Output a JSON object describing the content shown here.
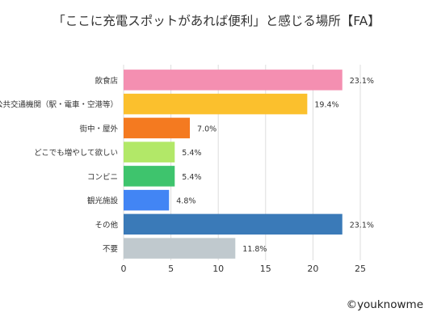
{
  "chart_data": {
    "type": "bar",
    "orientation": "horizontal",
    "title": "「ここに充電スポットがあれば便利」と感じる場所【FA】",
    "categories": [
      "飲食店",
      "公共交通機関（駅・電車・空港等）",
      "街中・屋外",
      "どこでも増やして欲しい",
      "コンビニ",
      "観光施設",
      "その他",
      "不要"
    ],
    "values": [
      23.1,
      19.4,
      7.0,
      5.4,
      5.4,
      4.8,
      23.1,
      11.8
    ],
    "value_labels": [
      "23.1%",
      "19.4%",
      "7.0%",
      "5.4%",
      "5.4%",
      "4.8%",
      "23.1%",
      "11.8%"
    ],
    "colors": [
      "#f48fb1",
      "#fbc02d",
      "#f47a20",
      "#b2e868",
      "#3ec46d",
      "#4285f4",
      "#3a7ab8",
      "#c0c9ce"
    ],
    "xlim": [
      0,
      25
    ],
    "xticks": [
      "0",
      "5",
      "10",
      "15",
      "20",
      "25"
    ],
    "grid": true,
    "copyright": "©youknowme"
  }
}
